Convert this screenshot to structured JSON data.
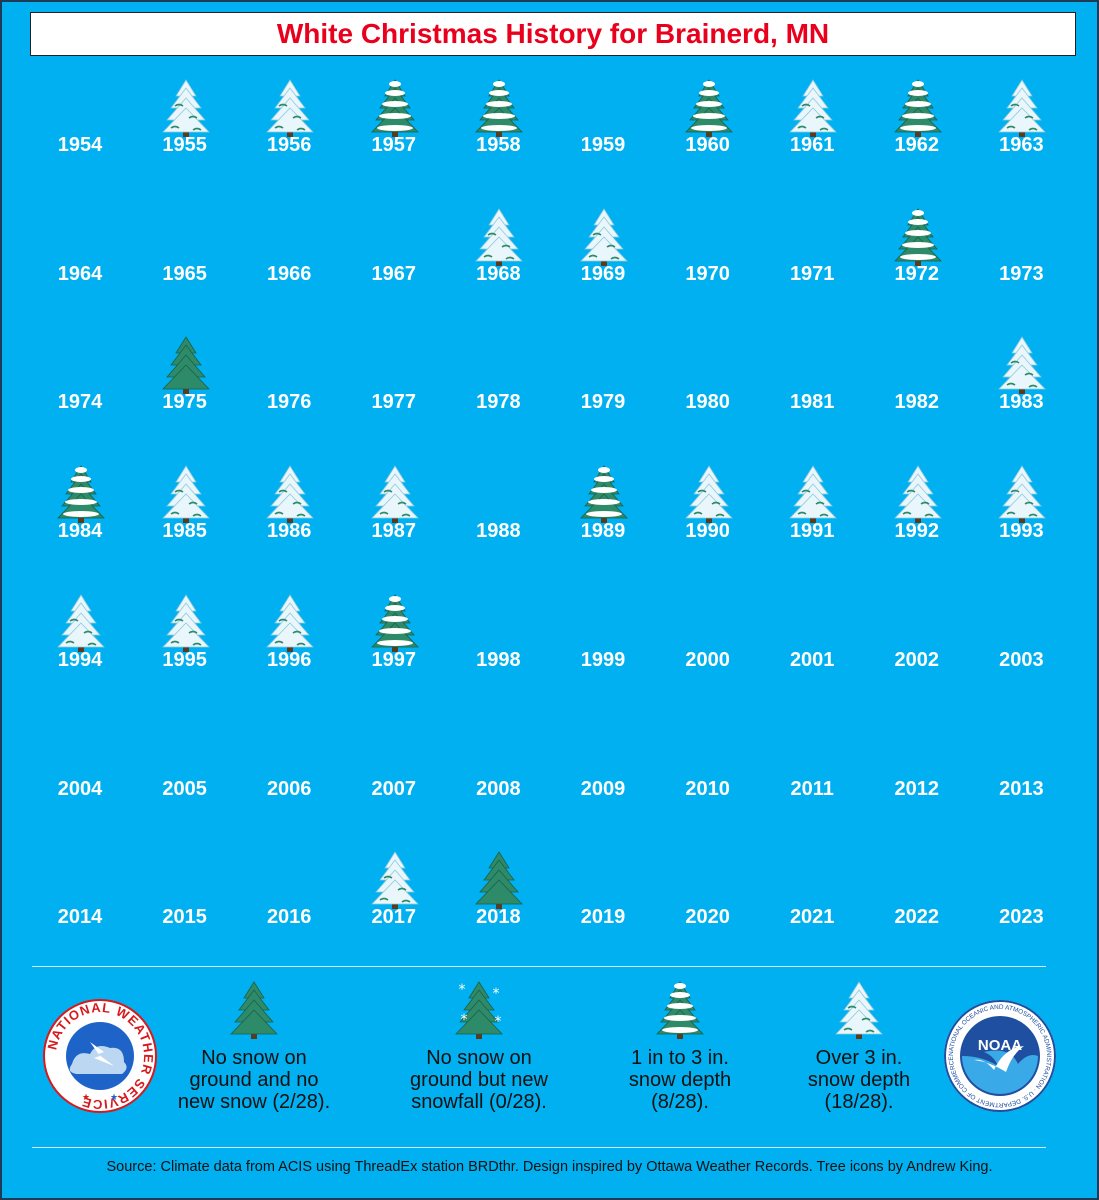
{
  "title": "White Christmas History for Brainerd, MN",
  "colors": {
    "background": "#00b0f0",
    "title_text": "#e8001c",
    "tree_green": "#2e8b6a",
    "snow": "#ffffff"
  },
  "categories": {
    "none": "no snow on ground and no new snow",
    "snowfall": "no snow on ground but new snowfall",
    "light": "1 in to 3 in. snow depth",
    "heavy": "over 3 in. snow depth",
    "blank": "no icon shown"
  },
  "years": [
    {
      "year": "1954",
      "icon": "blank"
    },
    {
      "year": "1955",
      "icon": "heavy"
    },
    {
      "year": "1956",
      "icon": "heavy"
    },
    {
      "year": "1957",
      "icon": "light"
    },
    {
      "year": "1958",
      "icon": "light"
    },
    {
      "year": "1959",
      "icon": "blank"
    },
    {
      "year": "1960",
      "icon": "light"
    },
    {
      "year": "1961",
      "icon": "heavy"
    },
    {
      "year": "1962",
      "icon": "light"
    },
    {
      "year": "1963",
      "icon": "heavy"
    },
    {
      "year": "1964",
      "icon": "blank"
    },
    {
      "year": "1965",
      "icon": "blank"
    },
    {
      "year": "1966",
      "icon": "blank"
    },
    {
      "year": "1967",
      "icon": "blank"
    },
    {
      "year": "1968",
      "icon": "heavy"
    },
    {
      "year": "1969",
      "icon": "heavy"
    },
    {
      "year": "1970",
      "icon": "blank"
    },
    {
      "year": "1971",
      "icon": "blank"
    },
    {
      "year": "1972",
      "icon": "light"
    },
    {
      "year": "1973",
      "icon": "blank"
    },
    {
      "year": "1974",
      "icon": "blank"
    },
    {
      "year": "1975",
      "icon": "none"
    },
    {
      "year": "1976",
      "icon": "blank"
    },
    {
      "year": "1977",
      "icon": "blank"
    },
    {
      "year": "1978",
      "icon": "blank"
    },
    {
      "year": "1979",
      "icon": "blank"
    },
    {
      "year": "1980",
      "icon": "blank"
    },
    {
      "year": "1981",
      "icon": "blank"
    },
    {
      "year": "1982",
      "icon": "blank"
    },
    {
      "year": "1983",
      "icon": "heavy"
    },
    {
      "year": "1984",
      "icon": "light"
    },
    {
      "year": "1985",
      "icon": "heavy"
    },
    {
      "year": "1986",
      "icon": "heavy"
    },
    {
      "year": "1987",
      "icon": "heavy"
    },
    {
      "year": "1988",
      "icon": "blank"
    },
    {
      "year": "1989",
      "icon": "light"
    },
    {
      "year": "1990",
      "icon": "heavy"
    },
    {
      "year": "1991",
      "icon": "heavy"
    },
    {
      "year": "1992",
      "icon": "heavy"
    },
    {
      "year": "1993",
      "icon": "heavy"
    },
    {
      "year": "1994",
      "icon": "heavy"
    },
    {
      "year": "1995",
      "icon": "heavy"
    },
    {
      "year": "1996",
      "icon": "heavy"
    },
    {
      "year": "1997",
      "icon": "light"
    },
    {
      "year": "1998",
      "icon": "blank"
    },
    {
      "year": "1999",
      "icon": "blank"
    },
    {
      "year": "2000",
      "icon": "blank"
    },
    {
      "year": "2001",
      "icon": "blank"
    },
    {
      "year": "2002",
      "icon": "blank"
    },
    {
      "year": "2003",
      "icon": "blank"
    },
    {
      "year": "2004",
      "icon": "blank"
    },
    {
      "year": "2005",
      "icon": "blank"
    },
    {
      "year": "2006",
      "icon": "blank"
    },
    {
      "year": "2007",
      "icon": "blank"
    },
    {
      "year": "2008",
      "icon": "blank"
    },
    {
      "year": "2009",
      "icon": "blank"
    },
    {
      "year": "2010",
      "icon": "blank"
    },
    {
      "year": "2011",
      "icon": "blank"
    },
    {
      "year": "2012",
      "icon": "blank"
    },
    {
      "year": "2013",
      "icon": "blank"
    },
    {
      "year": "2014",
      "icon": "blank"
    },
    {
      "year": "2015",
      "icon": "blank"
    },
    {
      "year": "2016",
      "icon": "blank"
    },
    {
      "year": "2017",
      "icon": "heavy"
    },
    {
      "year": "2018",
      "icon": "none"
    },
    {
      "year": "2019",
      "icon": "blank"
    },
    {
      "year": "2020",
      "icon": "blank"
    },
    {
      "year": "2021",
      "icon": "blank"
    },
    {
      "year": "2022",
      "icon": "blank"
    },
    {
      "year": "2023",
      "icon": "blank"
    }
  ],
  "legend": [
    {
      "icon": "none",
      "lines": [
        "No snow on",
        "ground and no",
        "new snow (2/28)."
      ]
    },
    {
      "icon": "snowfall",
      "lines": [
        "No snow on",
        "ground but new",
        "snowfall (0/28)."
      ]
    },
    {
      "icon": "light",
      "lines": [
        "1 in to 3 in.",
        "snow depth",
        "(8/28)."
      ]
    },
    {
      "icon": "heavy",
      "lines": [
        "Over 3 in.",
        "snow depth",
        "(18/28)."
      ]
    }
  ],
  "logos": {
    "nws_text": "NATIONAL WEATHER SERVICE",
    "noaa_center": "NOAA",
    "noaa_ring": "NATIONAL OCEANIC AND ATMOSPHERIC ADMINISTRATION · U.S. DEPARTMENT OF COMMERCE"
  },
  "source": "Source: Climate data from ACIS using ThreadEx station BRDthr. Design inspired by Ottawa Weather Records. Tree icons by Andrew King."
}
